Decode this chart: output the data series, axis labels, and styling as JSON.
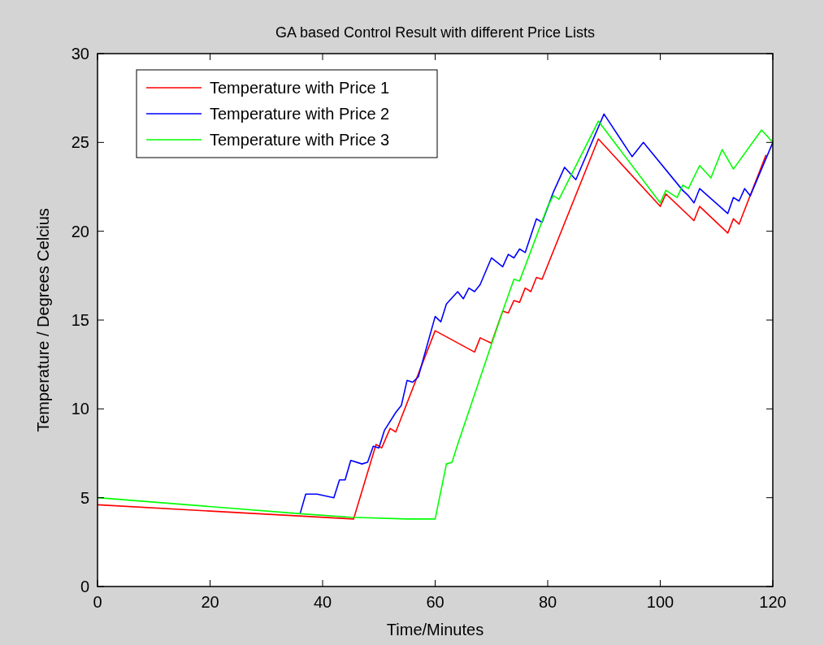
{
  "chart_data": {
    "type": "line",
    "title": "GA based Control Result with different Price Lists",
    "xlabel": "Time/Minutes",
    "ylabel": "Temperature / Degrees Celcius",
    "xlim": [
      0,
      120
    ],
    "ylim": [
      0,
      30
    ],
    "xticks": [
      0,
      20,
      40,
      60,
      80,
      100,
      120
    ],
    "yticks": [
      0,
      5,
      10,
      15,
      20,
      25,
      30
    ],
    "grid": false,
    "legend": "top left",
    "series": [
      {
        "name": "Temperature with Price 1",
        "color": "#ff0000",
        "x": [
          0,
          45.5,
          49.5,
          50.5,
          52,
          53,
          60,
          67,
          68,
          70,
          72,
          73,
          74,
          75,
          76,
          77,
          78,
          79,
          89,
          100,
          101,
          105,
          106,
          107,
          112,
          113,
          114,
          118.8
        ],
        "values": [
          4.6,
          3.8,
          8.0,
          7.8,
          8.9,
          8.7,
          14.4,
          13.2,
          14.0,
          13.7,
          15.5,
          15.4,
          16.1,
          16.0,
          16.8,
          16.6,
          17.4,
          17.3,
          25.2,
          21.4,
          22.1,
          20.9,
          20.6,
          21.4,
          19.9,
          20.7,
          20.4,
          24.3
        ]
      },
      {
        "name": "Temperature with Price 2",
        "color": "#0000ff",
        "x": [
          36,
          37,
          39,
          42,
          43,
          44,
          45,
          47,
          48,
          49,
          50,
          51,
          53,
          54,
          55,
          56,
          57,
          60,
          61,
          62,
          64,
          65,
          66,
          67,
          68,
          70,
          72,
          73,
          74,
          75,
          76,
          78,
          79,
          81,
          83,
          85,
          90,
          95,
          97,
          104,
          105,
          106,
          107,
          112,
          113,
          114,
          115,
          116,
          120
        ],
        "values": [
          4.1,
          5.2,
          5.2,
          5.0,
          6.0,
          6.0,
          7.1,
          6.9,
          7.0,
          7.9,
          7.8,
          8.8,
          9.8,
          10.2,
          11.6,
          11.5,
          11.8,
          15.2,
          14.9,
          15.9,
          16.6,
          16.2,
          16.8,
          16.6,
          17.0,
          18.5,
          18.0,
          18.7,
          18.5,
          19.0,
          18.8,
          20.7,
          20.5,
          22.2,
          23.6,
          22.9,
          26.6,
          24.2,
          25.0,
          22.3,
          22.0,
          21.6,
          22.4,
          21.0,
          21.9,
          21.7,
          22.4,
          22.0,
          25.0
        ]
      },
      {
        "name": "Temperature with Price 3",
        "color": "#00ff00",
        "x": [
          0,
          36,
          45,
          55,
          60,
          62,
          63,
          64,
          72,
          74,
          75,
          80,
          81,
          82,
          89,
          100,
          101,
          103,
          104,
          105,
          107,
          109,
          111,
          113,
          118,
          120
        ],
        "values": [
          5.0,
          4.1,
          3.9,
          3.8,
          3.8,
          6.9,
          7.0,
          8.0,
          15.5,
          17.3,
          17.2,
          21.4,
          22.0,
          21.8,
          26.2,
          21.6,
          22.3,
          21.9,
          22.6,
          22.4,
          23.7,
          23.0,
          24.6,
          23.5,
          25.7,
          25.0
        ]
      }
    ]
  }
}
